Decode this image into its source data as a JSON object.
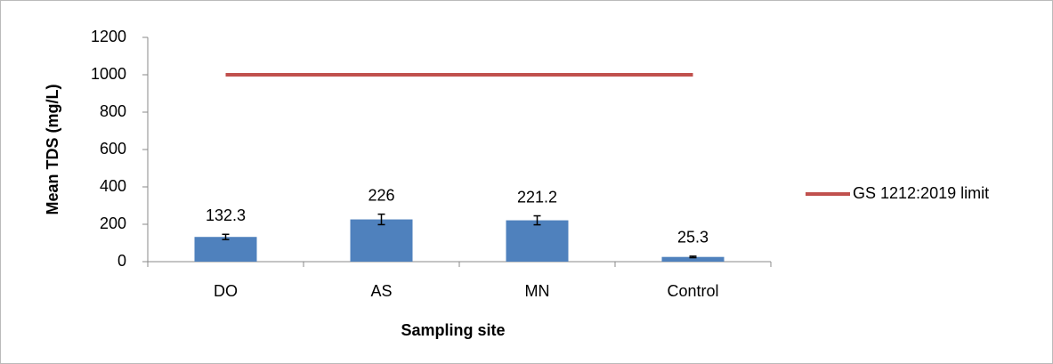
{
  "chart_data": {
    "type": "bar",
    "xlabel": "Sampling site",
    "ylabel": "Mean TDS (mg/L)",
    "categories": [
      "DO",
      "AS",
      "MN",
      "Control"
    ],
    "values": [
      132.3,
      226,
      221.2,
      25.3
    ],
    "errors": [
      14,
      28,
      24,
      4
    ],
    "color": "#4f81bd",
    "line": {
      "name": "GS 1212:2019 limit",
      "color": "#c0504d",
      "values": [
        1000,
        1000,
        1000,
        1000
      ]
    },
    "ylim": [
      0,
      1200
    ],
    "yticks": [
      0,
      200,
      400,
      600,
      800,
      1000,
      1200
    ],
    "grid": false,
    "legend": "right"
  }
}
